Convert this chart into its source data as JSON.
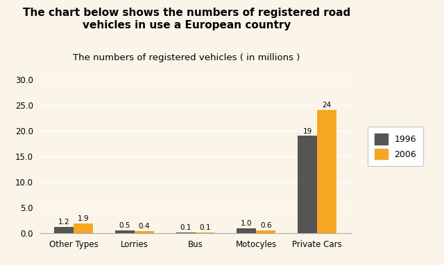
{
  "title": "The chart below shows the numbers of registered road\nvehicles in use a European country",
  "chart_title": "The numbers of registered vehicles ( in millions )",
  "categories": [
    "Other Types",
    "Lorries",
    "Bus",
    "Motocyles",
    "Private Cars"
  ],
  "values_1996": [
    1.2,
    0.5,
    0.1,
    1.0,
    19
  ],
  "values_2006": [
    1.9,
    0.4,
    0.1,
    0.6,
    24
  ],
  "labels_1996": [
    "1.2",
    "0.5",
    "0.1",
    "1.0",
    "19"
  ],
  "labels_2006": [
    "1.9",
    "0.4",
    "0.1",
    "0.6",
    "24"
  ],
  "color_1996": "#555555",
  "color_2006": "#F5A623",
  "legend_1996": "1996",
  "legend_2006": "2006",
  "ylim": [
    0,
    30
  ],
  "yticks": [
    0.0,
    5.0,
    10.0,
    15.0,
    20.0,
    25.0,
    30.0
  ],
  "bar_width": 0.32,
  "background_color": "#FAF5E8",
  "title_fontsize": 11,
  "chart_title_fontsize": 9.5,
  "tick_fontsize": 8.5,
  "label_fontsize": 7.5
}
